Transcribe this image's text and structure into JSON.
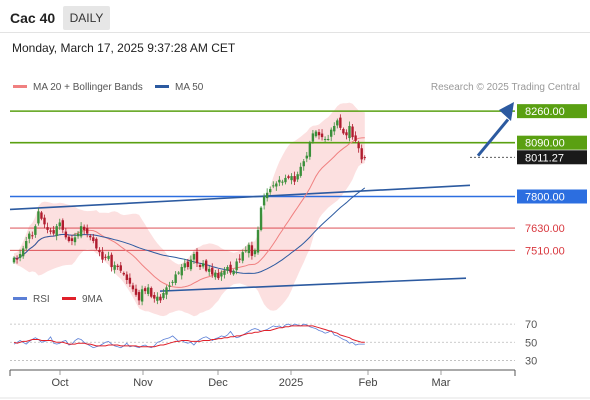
{
  "header": {
    "title": "Cac 40",
    "interval": "DAILY"
  },
  "datetime": "Monday, March 17, 2025 9:37:28 AM CET",
  "legend": {
    "items": [
      {
        "label": "MA 20 + Bollinger Bands",
        "color": "#f08080"
      },
      {
        "label": "MA 50",
        "color": "#2c5aa0"
      }
    ],
    "credit": "Research © 2025 Trading Central"
  },
  "colors": {
    "up": "#3a8f3a",
    "down": "#b01c2e",
    "resistance": "#5aa012",
    "support": "#2c6ee0",
    "minor_support": "#d9383f",
    "bollinger_fill": "#fbd5d5",
    "ma20": "#f08080",
    "ma50": "#2c5aa0",
    "rsi": "#5b7fd6",
    "rsi_ma": "#e0202a"
  },
  "chart_data": [
    {
      "type": "candlestick",
      "title": "Cac 40",
      "x_labels": [
        "Oct",
        "Nov",
        "Dec",
        "2025",
        "Feb",
        "Mar"
      ],
      "ylim": [
        7350,
        8320
      ],
      "y_axis": "hidden",
      "price_levels": [
        {
          "label": "8260.00",
          "value": 8260,
          "kind": "resistance"
        },
        {
          "label": "8090.00",
          "value": 8090,
          "kind": "resistance"
        },
        {
          "label": "8011.27",
          "value": 8011.27,
          "kind": "last"
        },
        {
          "label": "7800.00",
          "value": 7800,
          "kind": "support"
        },
        {
          "label": "7630.00",
          "value": 7630,
          "kind": "minor_support"
        },
        {
          "label": "7510.00",
          "value": 7510,
          "kind": "minor_support"
        }
      ],
      "series_trend": [
        7470,
        7460,
        7490,
        7520,
        7560,
        7600,
        7590,
        7640,
        7720,
        7680,
        7650,
        7620,
        7610,
        7600,
        7640,
        7660,
        7620,
        7580,
        7560,
        7560,
        7580,
        7600,
        7640,
        7620,
        7600,
        7580,
        7560,
        7520,
        7500,
        7460,
        7470,
        7480,
        7420,
        7430,
        7420,
        7400,
        7380,
        7350,
        7330,
        7300,
        7270,
        7240,
        7300,
        7290,
        7310,
        7260,
        7250,
        7260,
        7240,
        7280,
        7310,
        7320,
        7340,
        7380,
        7390,
        7420,
        7440,
        7420,
        7460,
        7490,
        7440,
        7420,
        7440,
        7400,
        7410,
        7380,
        7390,
        7360,
        7390,
        7400,
        7420,
        7390,
        7400,
        7450,
        7460,
        7500,
        7510,
        7540,
        7480,
        7510,
        7620,
        7740,
        7800,
        7820,
        7840,
        7860,
        7870,
        7890,
        7880,
        7900,
        7900,
        7910,
        7880,
        7920,
        7960,
        7990,
        8020,
        8090,
        8140,
        8150,
        8130,
        8120,
        8110,
        8110,
        8160,
        8180,
        8210,
        8170,
        8140,
        8130,
        8180,
        8120,
        8100,
        8060,
        8000,
        8011.27
      ],
      "rsi": {
        "ylim": [
          25,
          80
        ],
        "levels": [
          70,
          50,
          30
        ],
        "series": [
          {
            "name": "RSI",
            "values": [
              48,
              50,
              52,
              50,
              48,
              51,
              53,
              55,
              53,
              50,
              51,
              52,
              56,
              49,
              48,
              49,
              51,
              52,
              47,
              48,
              52,
              54,
              53,
              50,
              48,
              46,
              44,
              45,
              46,
              48,
              50,
              51,
              48,
              46,
              45,
              44,
              46,
              49,
              45,
              46,
              45,
              44,
              46,
              47,
              45,
              44,
              46,
              50,
              51,
              53,
              54,
              55,
              57,
              54,
              51,
              52,
              50,
              49,
              50,
              47,
              51,
              53,
              55,
              56,
              54,
              52,
              54,
              55,
              57,
              56,
              58,
              62,
              57,
              55,
              56,
              58,
              60,
              62,
              64,
              65,
              64,
              62,
              63,
              64,
              66,
              68,
              67,
              68,
              66,
              69,
              70,
              68,
              70,
              69,
              68,
              70,
              69,
              67,
              66,
              65,
              63,
              62,
              60,
              61,
              63,
              58,
              57,
              55,
              53,
              52,
              49,
              50,
              47,
              48,
              48,
              48
            ]
          },
          {
            "name": "9MA",
            "values": [
              50,
              49,
              50,
              51,
              51,
              52,
              53,
              53,
              53,
              52,
              52,
              52,
              52,
              51,
              50,
              50,
              50,
              49,
              48,
              48,
              48,
              49,
              49,
              49,
              48,
              48,
              47,
              46,
              46,
              46,
              46,
              47,
              47,
              47,
              47,
              46,
              46,
              46,
              46,
              46,
              46,
              45,
              45,
              45,
              45,
              45,
              45,
              46,
              47,
              47,
              48,
              49,
              50,
              51,
              51,
              52,
              52,
              52,
              51,
              51,
              51,
              51,
              52,
              52,
              52,
              53,
              53,
              54,
              54,
              55,
              55,
              56,
              56,
              57,
              57,
              58,
              59,
              60,
              60,
              61,
              61,
              62,
              63,
              63,
              63,
              64,
              65,
              66,
              66,
              67,
              67,
              68,
              68,
              68,
              68,
              68,
              68,
              68,
              68,
              67,
              66,
              65,
              64,
              63,
              62,
              61,
              60,
              58,
              57,
              56,
              55,
              53,
              52,
              51,
              50,
              50
            ]
          }
        ]
      }
    }
  ]
}
